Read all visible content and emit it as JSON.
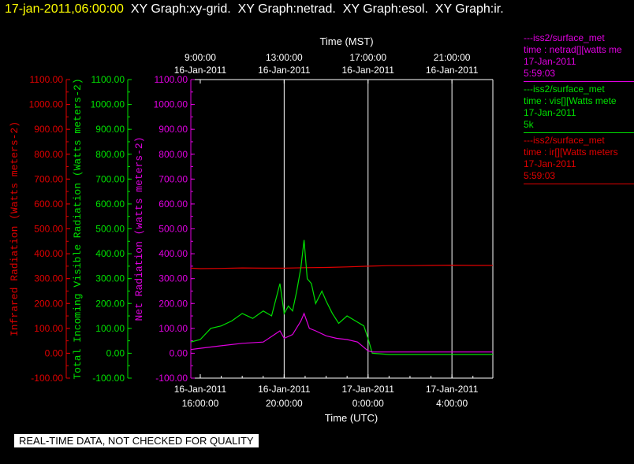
{
  "header": {
    "date": "17-jan-2011,06:00:00",
    "graphs": "XY Graph:xy-grid.  XY Graph:netrad.  XY Graph:esol.  XY Graph:ir."
  },
  "legend": [
    {
      "station": "---iss2/surface_met",
      "var": "time : netrad[][watts me",
      "date": "17-Jan-2011",
      "extra": "5:59:03",
      "color": "#e000e0"
    },
    {
      "station": "---iss2/surface_met",
      "var": "time : vis[][Watts mete",
      "date": "17-Jan-2011",
      "extra": "5k",
      "color": "#00e000"
    },
    {
      "station": "---iss2/surface_met",
      "var": "time : ir[][Watts meters",
      "date": "17-Jan-2011",
      "extra": "5:59:03",
      "color": "#e00000"
    }
  ],
  "warning": "REAL-TIME DATA, NOT CHECKED FOR QUALITY",
  "chart_data": {
    "type": "line",
    "top_axis": {
      "label": "Time (MST)",
      "ticks": [
        {
          "time": "9:00:00",
          "date": "16-Jan-2011"
        },
        {
          "time": "13:00:00",
          "date": "16-Jan-2011"
        },
        {
          "time": "17:00:00",
          "date": "16-Jan-2011"
        },
        {
          "time": "21:00:00",
          "date": "16-Jan-2011"
        }
      ]
    },
    "bottom_axis": {
      "label": "Time (UTC)",
      "ticks": [
        {
          "date": "16-Jan-2011",
          "time": "16:00:00"
        },
        {
          "date": "16-Jan-2011",
          "time": "20:00:00"
        },
        {
          "date": "17-Jan-2011",
          "time": "0:00:00"
        },
        {
          "date": "17-Jan-2011",
          "time": "4:00:00"
        }
      ],
      "xlim_hours_utc": [
        15.55,
        29.95
      ],
      "grid_hours_utc": [
        20,
        24,
        28
      ]
    },
    "y_axes": [
      {
        "label": "Infrared Radiation (Watts meters-2)",
        "color": "#e00000",
        "ylim": [
          -100,
          1100
        ],
        "ticks": [
          "-100.00",
          "0.00",
          "100.00",
          "200.00",
          "300.00",
          "400.00",
          "500.00",
          "600.00",
          "700.00",
          "800.00",
          "900.00",
          "1000.00",
          "1100.00"
        ]
      },
      {
        "label": "Total Incoming Visible Radiation (Watts meters-2)",
        "color": "#00e000",
        "ylim": [
          -100,
          1100
        ],
        "ticks": [
          "-100.00",
          "0.00",
          "100.00",
          "200.00",
          "300.00",
          "400.00",
          "500.00",
          "600.00",
          "700.00",
          "800.00",
          "900.00",
          "1000.00",
          "1100.00"
        ]
      },
      {
        "label": "Net Radiation (watts meters-2)",
        "color": "#e000e0",
        "ylim": [
          -100,
          1100
        ],
        "ticks": [
          "-100.00",
          "0.00",
          "100.00",
          "200.00",
          "300.00",
          "400.00",
          "500.00",
          "600.00",
          "700.00",
          "800.00",
          "900.00",
          "1000.00",
          "1100.00"
        ]
      }
    ],
    "series": [
      {
        "name": "ir",
        "color": "#e00000",
        "x": [
          15.55,
          16,
          17,
          18,
          19,
          20,
          21,
          22,
          23,
          24,
          25,
          26,
          27,
          28,
          29,
          29.95
        ],
        "y": [
          342,
          340,
          341,
          343,
          342,
          342,
          344,
          345,
          347,
          350,
          352,
          352,
          353,
          354,
          353,
          353
        ]
      },
      {
        "name": "vis",
        "color": "#00e000",
        "x": [
          15.55,
          16,
          16.5,
          17,
          17.5,
          18,
          18.5,
          19,
          19.4,
          19.8,
          20,
          20.2,
          20.4,
          20.6,
          20.8,
          20.95,
          21.1,
          21.3,
          21.5,
          21.8,
          22,
          22.3,
          22.6,
          23,
          23.4,
          23.8,
          24,
          24.2,
          25,
          26,
          27,
          28,
          29,
          29.95
        ],
        "y": [
          45,
          55,
          100,
          110,
          130,
          160,
          140,
          170,
          150,
          280,
          160,
          190,
          170,
          250,
          345,
          455,
          300,
          280,
          200,
          250,
          210,
          160,
          120,
          150,
          130,
          110,
          60,
          0,
          -5,
          -5,
          -5,
          -5,
          -5,
          -5
        ]
      },
      {
        "name": "netrad",
        "color": "#e000e0",
        "x": [
          15.55,
          16,
          17,
          18,
          19,
          19.8,
          20,
          20.4,
          20.8,
          20.95,
          21.2,
          21.5,
          22,
          22.5,
          23,
          23.5,
          24,
          24.2,
          25,
          26,
          27,
          28,
          29,
          29.95
        ],
        "y": [
          15,
          20,
          30,
          40,
          45,
          90,
          60,
          75,
          130,
          160,
          100,
          90,
          70,
          60,
          55,
          45,
          10,
          5,
          5,
          5,
          5,
          5,
          5,
          5
        ]
      }
    ]
  }
}
